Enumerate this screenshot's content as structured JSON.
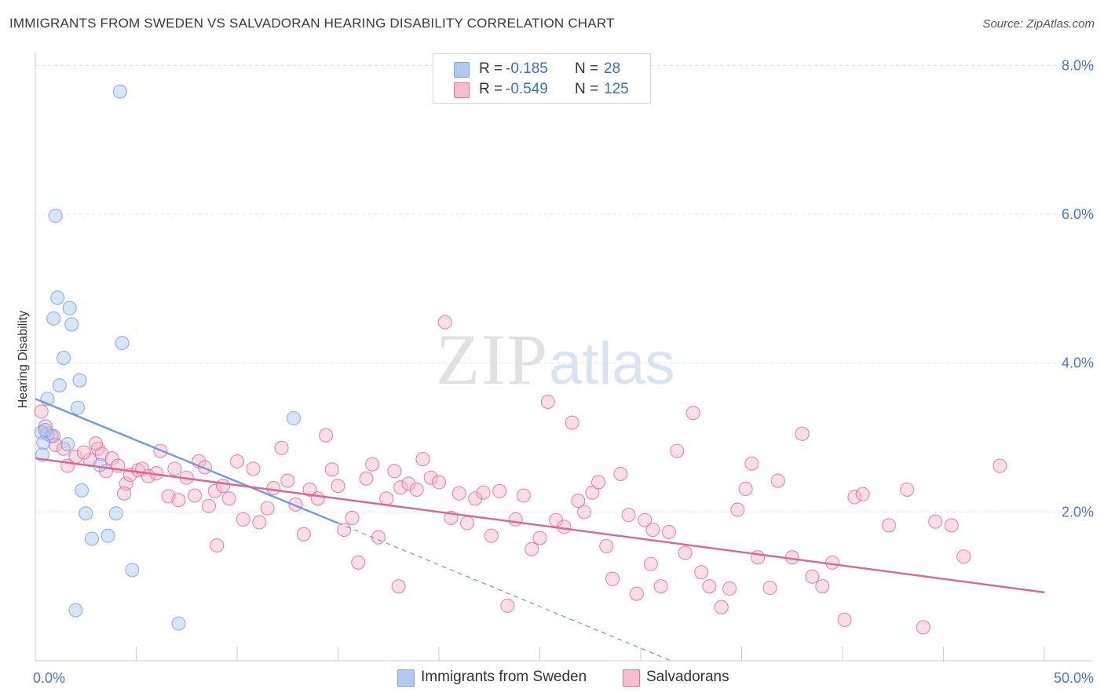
{
  "title": "IMMIGRANTS FROM SWEDEN VS SALVADORAN HEARING DISABILITY CORRELATION CHART",
  "source": "Source: ZipAtlas.com",
  "watermark": {
    "zip": "ZIP",
    "atlas": "atlas"
  },
  "legend": [
    {
      "r_label": "R =",
      "r_value": "-0.185",
      "n_label": "N =",
      "n_value": "28",
      "color": "#a9c4ef"
    },
    {
      "r_label": "R =",
      "r_value": "-0.549",
      "n_label": "N =",
      "n_value": "125",
      "color": "#f4b6c9"
    }
  ],
  "chart_data": {
    "type": "scatter",
    "title": "IMMIGRANTS FROM SWEDEN VS SALVADORAN HEARING DISABILITY CORRELATION CHART",
    "xlabel": "",
    "ylabel": "Hearing Disability",
    "xlim": [
      0,
      50
    ],
    "ylim": [
      0,
      8.1
    ],
    "x_tick_labels": [
      "0.0%",
      "50.0%"
    ],
    "y_ticks": [
      2,
      4,
      6,
      8
    ],
    "y_tick_labels": [
      "2.0%",
      "4.0%",
      "6.0%",
      "8.0%"
    ],
    "grid": true,
    "series": [
      {
        "name": "Immigrants from Sweden",
        "color": "#6f9be0",
        "fill": "#a9c4ef",
        "trend": {
          "x": [
            0,
            15
          ],
          "y": [
            3.52,
            1.85
          ],
          "extend_to": [
            31.5,
            0.0
          ],
          "dashed_extension": true
        },
        "points": [
          [
            4.2,
            7.65
          ],
          [
            1.0,
            5.98
          ],
          [
            1.1,
            4.88
          ],
          [
            1.7,
            4.74
          ],
          [
            0.9,
            4.6
          ],
          [
            1.8,
            4.52
          ],
          [
            4.3,
            4.27
          ],
          [
            1.4,
            4.07
          ],
          [
            2.2,
            3.77
          ],
          [
            1.2,
            3.7
          ],
          [
            0.6,
            3.52
          ],
          [
            2.1,
            3.4
          ],
          [
            12.8,
            3.26
          ],
          [
            0.3,
            3.07
          ],
          [
            0.8,
            3.02
          ],
          [
            0.4,
            2.93
          ],
          [
            1.6,
            2.91
          ],
          [
            0.35,
            2.77
          ],
          [
            3.2,
            2.63
          ],
          [
            2.3,
            2.29
          ],
          [
            2.5,
            1.98
          ],
          [
            4.0,
            1.98
          ],
          [
            3.6,
            1.68
          ],
          [
            2.8,
            1.64
          ],
          [
            4.8,
            1.22
          ],
          [
            2.0,
            0.68
          ],
          [
            7.1,
            0.5
          ],
          [
            0.5,
            3.1
          ]
        ]
      },
      {
        "name": "Salvadorans",
        "color": "#e0648c",
        "fill": "#f4b6c9",
        "trend": {
          "x": [
            0,
            50
          ],
          "y": [
            2.72,
            0.92
          ]
        },
        "points": [
          [
            0.3,
            3.35
          ],
          [
            0.5,
            3.15
          ],
          [
            0.9,
            3.02
          ],
          [
            1.0,
            2.9
          ],
          [
            1.4,
            2.85
          ],
          [
            2.0,
            2.74
          ],
          [
            2.7,
            2.7
          ],
          [
            3.1,
            2.85
          ],
          [
            3.3,
            2.78
          ],
          [
            3.5,
            2.55
          ],
          [
            3.8,
            2.72
          ],
          [
            4.1,
            2.62
          ],
          [
            4.5,
            2.38
          ],
          [
            4.7,
            2.5
          ],
          [
            5.1,
            2.56
          ],
          [
            5.3,
            2.58
          ],
          [
            5.6,
            2.48
          ],
          [
            6.0,
            2.52
          ],
          [
            6.2,
            2.82
          ],
          [
            6.6,
            2.21
          ],
          [
            6.9,
            2.58
          ],
          [
            7.1,
            2.16
          ],
          [
            7.5,
            2.46
          ],
          [
            7.9,
            2.22
          ],
          [
            8.1,
            2.68
          ],
          [
            8.4,
            2.6
          ],
          [
            8.6,
            2.08
          ],
          [
            8.9,
            2.28
          ],
          [
            9.3,
            2.35
          ],
          [
            9.6,
            2.18
          ],
          [
            10.0,
            2.68
          ],
          [
            10.3,
            1.9
          ],
          [
            10.8,
            2.58
          ],
          [
            11.1,
            1.86
          ],
          [
            11.5,
            2.05
          ],
          [
            11.8,
            2.32
          ],
          [
            12.2,
            2.86
          ],
          [
            12.5,
            2.42
          ],
          [
            12.9,
            2.1
          ],
          [
            13.3,
            1.7
          ],
          [
            13.6,
            2.3
          ],
          [
            14.0,
            2.18
          ],
          [
            14.4,
            3.03
          ],
          [
            14.7,
            2.57
          ],
          [
            15.0,
            2.35
          ],
          [
            15.3,
            1.76
          ],
          [
            15.7,
            1.92
          ],
          [
            16.0,
            1.32
          ],
          [
            16.4,
            2.45
          ],
          [
            16.7,
            2.64
          ],
          [
            17.0,
            1.66
          ],
          [
            17.4,
            2.18
          ],
          [
            17.8,
            2.55
          ],
          [
            18.1,
            2.33
          ],
          [
            18.5,
            2.38
          ],
          [
            18.9,
            2.3
          ],
          [
            19.2,
            2.71
          ],
          [
            19.6,
            2.46
          ],
          [
            20.0,
            2.4
          ],
          [
            20.3,
            4.55
          ],
          [
            20.6,
            1.92
          ],
          [
            21.0,
            2.25
          ],
          [
            21.4,
            1.85
          ],
          [
            21.8,
            2.18
          ],
          [
            22.2,
            2.26
          ],
          [
            22.6,
            1.68
          ],
          [
            23.0,
            2.28
          ],
          [
            23.4,
            0.74
          ],
          [
            23.8,
            1.9
          ],
          [
            24.2,
            2.22
          ],
          [
            24.6,
            1.5
          ],
          [
            25.0,
            1.65
          ],
          [
            25.4,
            3.48
          ],
          [
            25.8,
            1.89
          ],
          [
            26.2,
            1.8
          ],
          [
            26.6,
            3.2
          ],
          [
            26.9,
            2.15
          ],
          [
            27.2,
            2.0
          ],
          [
            27.6,
            2.26
          ],
          [
            27.9,
            2.4
          ],
          [
            28.3,
            1.54
          ],
          [
            28.6,
            1.1
          ],
          [
            29.0,
            2.51
          ],
          [
            29.4,
            1.96
          ],
          [
            29.8,
            0.9
          ],
          [
            30.2,
            1.89
          ],
          [
            30.6,
            1.76
          ],
          [
            31.0,
            1.0
          ],
          [
            31.4,
            1.73
          ],
          [
            31.8,
            2.82
          ],
          [
            32.2,
            1.45
          ],
          [
            32.6,
            3.33
          ],
          [
            33.0,
            1.19
          ],
          [
            33.4,
            1.0
          ],
          [
            34.0,
            0.72
          ],
          [
            34.4,
            0.97
          ],
          [
            34.8,
            2.03
          ],
          [
            35.2,
            2.31
          ],
          [
            35.8,
            1.39
          ],
          [
            36.4,
            0.98
          ],
          [
            36.8,
            2.42
          ],
          [
            37.5,
            1.39
          ],
          [
            38.0,
            3.05
          ],
          [
            38.5,
            1.13
          ],
          [
            39.0,
            1.0
          ],
          [
            39.5,
            1.32
          ],
          [
            40.1,
            0.55
          ],
          [
            40.6,
            2.2
          ],
          [
            41.0,
            2.24
          ],
          [
            42.3,
            1.82
          ],
          [
            43.2,
            2.3
          ],
          [
            44.0,
            0.45
          ],
          [
            44.6,
            1.87
          ],
          [
            45.4,
            1.82
          ],
          [
            46.0,
            1.4
          ],
          [
            47.8,
            2.62
          ],
          [
            0.6,
            3.05
          ],
          [
            1.6,
            2.62
          ],
          [
            2.4,
            2.8
          ],
          [
            3.0,
            2.92
          ],
          [
            4.4,
            2.25
          ],
          [
            9.0,
            1.55
          ],
          [
            18.0,
            1.0
          ],
          [
            30.5,
            1.3
          ],
          [
            35.5,
            2.65
          ]
        ]
      }
    ]
  }
}
